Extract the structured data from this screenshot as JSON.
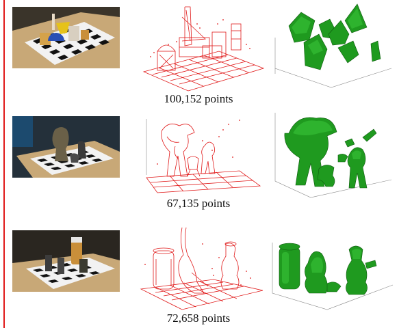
{
  "rows": [
    {
      "caption": "100,152 points"
    },
    {
      "caption": "67,135 points"
    },
    {
      "caption": "72,658 points"
    }
  ],
  "colors": {
    "point_cloud": "#e01818",
    "mesh": "#1f9a1f",
    "margin_rule": "#e01818"
  }
}
